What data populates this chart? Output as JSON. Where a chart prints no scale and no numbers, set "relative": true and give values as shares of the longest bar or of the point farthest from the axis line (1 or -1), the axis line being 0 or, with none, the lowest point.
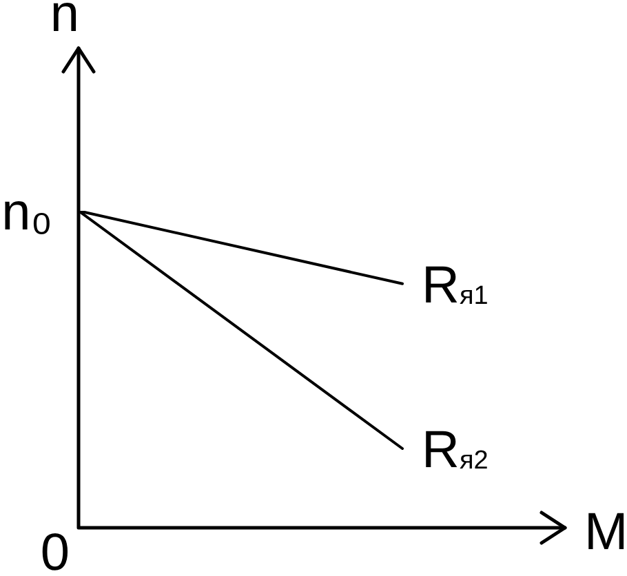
{
  "chart_data": {
    "type": "line",
    "xlabel": "M",
    "ylabel": "n",
    "relative": true,
    "categories": [
      null,
      null
    ],
    "series": [
      {
        "name": "R$_{я1}$",
        "color": "#000000",
        "values": [
          1,
          0.77
        ]
      },
      {
        "name": "R$_{я2}$",
        "color": "#000000",
        "values": [
          1,
          0.25
        ]
      }
    ],
    "annotations": [
      "n₀",
      "0"
    ],
    "marker": "none",
    "line_style": "solid"
  }
}
